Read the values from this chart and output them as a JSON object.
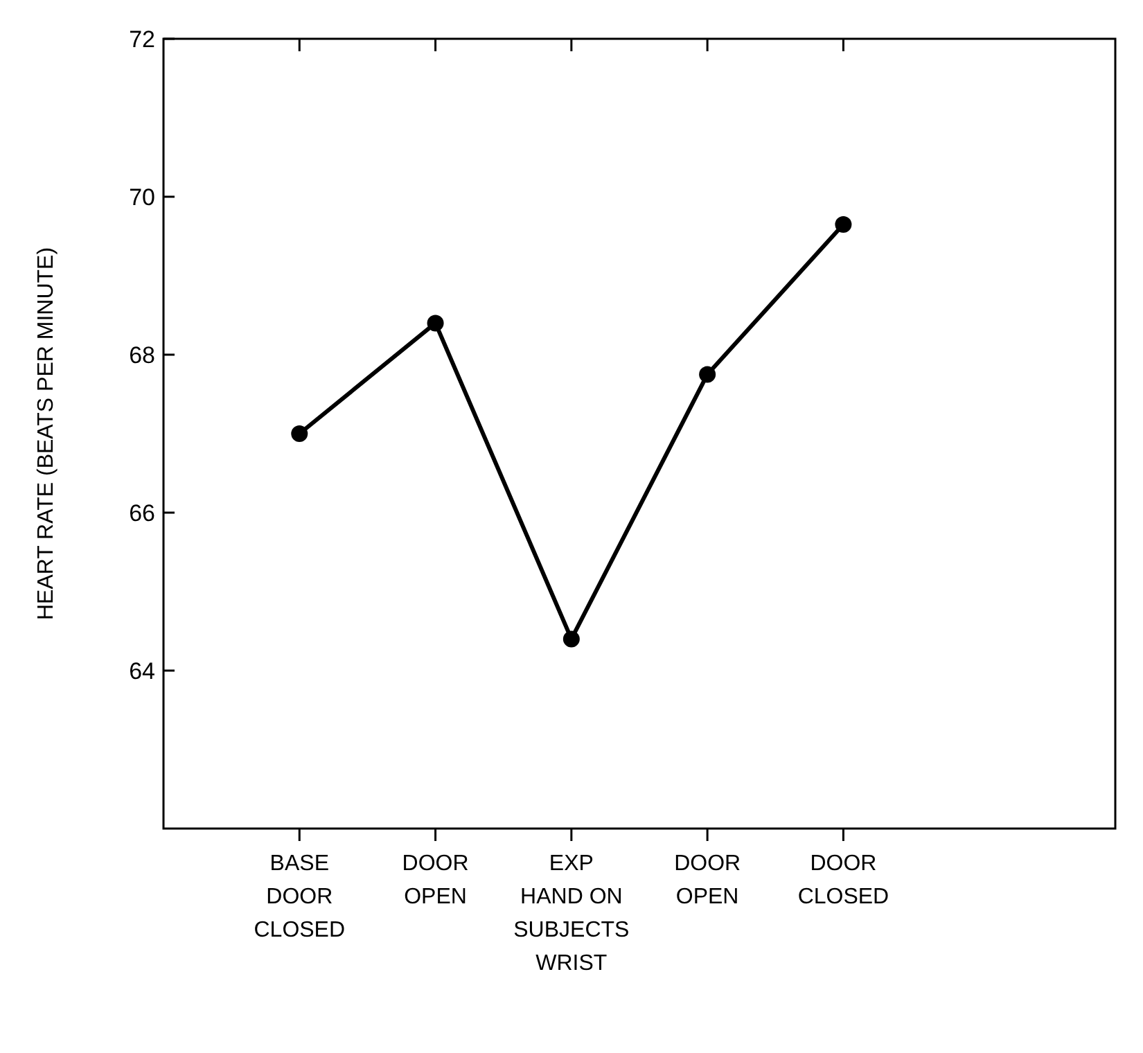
{
  "chart_data": {
    "type": "line",
    "ylabel": "HEART RATE (BEATS PER MINUTE)",
    "categories": [
      "BASE\nDOOR\nCLOSED",
      "DOOR\nOPEN",
      "EXP\nHAND ON\nSUBJECTS\nWRIST",
      "DOOR\nOPEN",
      "DOOR\nCLOSED"
    ],
    "values": [
      67.0,
      68.4,
      64.4,
      67.75,
      69.65
    ],
    "color": "#000000",
    "marker": "circle",
    "line_style": "solid",
    "ylim": [
      62,
      72
    ],
    "yticks": [
      64,
      66,
      68,
      70,
      72
    ]
  }
}
